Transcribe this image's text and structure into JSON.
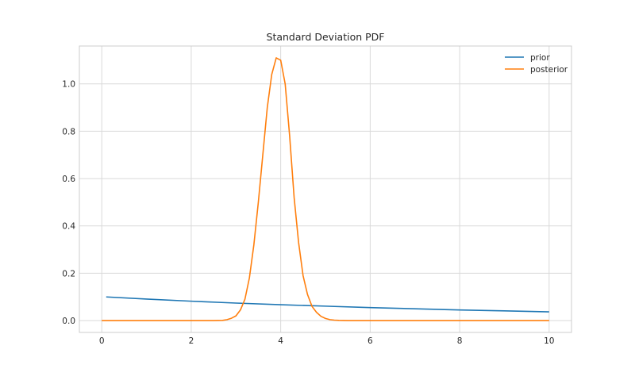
{
  "chart_data": {
    "type": "line",
    "title": "Standard Deviation PDF",
    "xlabel": "",
    "ylabel": "",
    "xlim": [
      -0.5,
      10.5
    ],
    "ylim": [
      -0.05,
      1.16
    ],
    "xticks": [
      0,
      2,
      4,
      6,
      8,
      10
    ],
    "yticks": [
      0.0,
      0.2,
      0.4,
      0.6,
      0.8,
      1.0
    ],
    "xtick_labels": [
      "0",
      "2",
      "4",
      "6",
      "8",
      "10"
    ],
    "ytick_labels": [
      "0.0",
      "0.2",
      "0.4",
      "0.6",
      "0.8",
      "1.0"
    ],
    "grid": true,
    "legend_position": "top-right",
    "series": [
      {
        "name": "prior",
        "color": "#1f77b4",
        "x": [
          0.1,
          1,
          2,
          3,
          4,
          5,
          6,
          7,
          8,
          9,
          10
        ],
        "y": [
          0.1,
          0.091,
          0.082,
          0.074,
          0.067,
          0.061,
          0.055,
          0.05,
          0.045,
          0.041,
          0.037
        ]
      },
      {
        "name": "posterior",
        "color": "#ff7f0e",
        "x": [
          0.0,
          0.5,
          1.0,
          1.5,
          2.0,
          2.5,
          2.7,
          2.8,
          2.9,
          3.0,
          3.1,
          3.2,
          3.3,
          3.4,
          3.5,
          3.6,
          3.7,
          3.8,
          3.9,
          4.0,
          4.1,
          4.2,
          4.3,
          4.4,
          4.5,
          4.6,
          4.7,
          4.8,
          4.9,
          5.0,
          5.1,
          5.2,
          5.3,
          5.5,
          6.0,
          7.0,
          8.0,
          9.0,
          10.0
        ],
        "y": [
          0.0,
          0.0,
          0.0,
          0.0,
          0.0,
          0.0,
          0.001,
          0.004,
          0.01,
          0.02,
          0.045,
          0.09,
          0.18,
          0.32,
          0.5,
          0.7,
          0.9,
          1.04,
          1.11,
          1.1,
          1.0,
          0.78,
          0.52,
          0.33,
          0.19,
          0.11,
          0.06,
          0.035,
          0.018,
          0.009,
          0.004,
          0.002,
          0.001,
          0.0,
          0.0,
          0.0,
          0.0,
          0.0,
          0.0
        ]
      }
    ]
  }
}
